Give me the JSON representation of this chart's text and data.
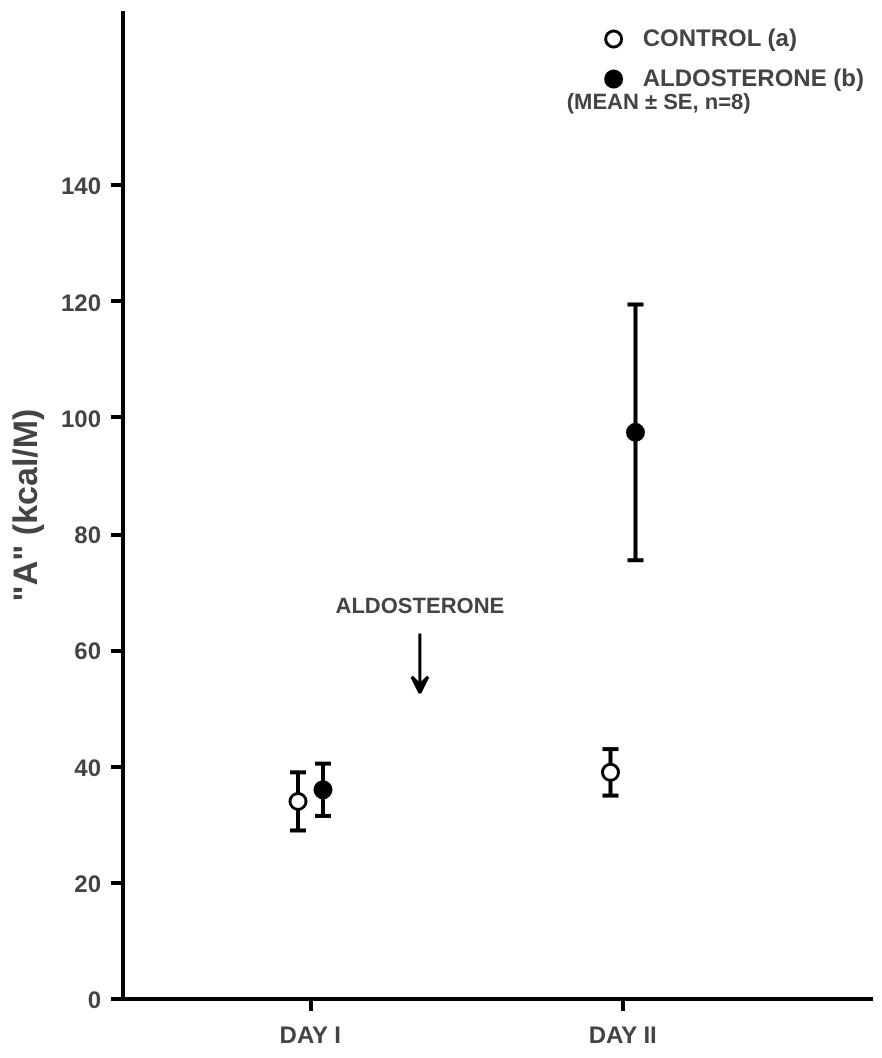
{
  "chart_data": {
    "type": "scatter",
    "ylabel": "\"A\" (kcal/M)",
    "categories": [
      "DAY I",
      "DAY II"
    ],
    "series": [
      {
        "name": "CONTROL (a)",
        "color": "#000000",
        "marker": "circle_open",
        "values": [
          34,
          39
        ],
        "errors": [
          5,
          4
        ]
      },
      {
        "name": "ALDOSTERONE (b)",
        "color": "#000000",
        "values": [
          36,
          97.5
        ],
        "errors": [
          4.5,
          22
        ]
      }
    ],
    "ylim": [
      0,
      170
    ],
    "yticks": [
      0,
      20,
      40,
      60,
      80,
      100,
      120,
      140
    ],
    "grid": false,
    "legend": "top right",
    "marker": "circle",
    "annotations": [
      "(MEAN ± SE, n=8)",
      "ALDOSTERONE"
    ]
  }
}
